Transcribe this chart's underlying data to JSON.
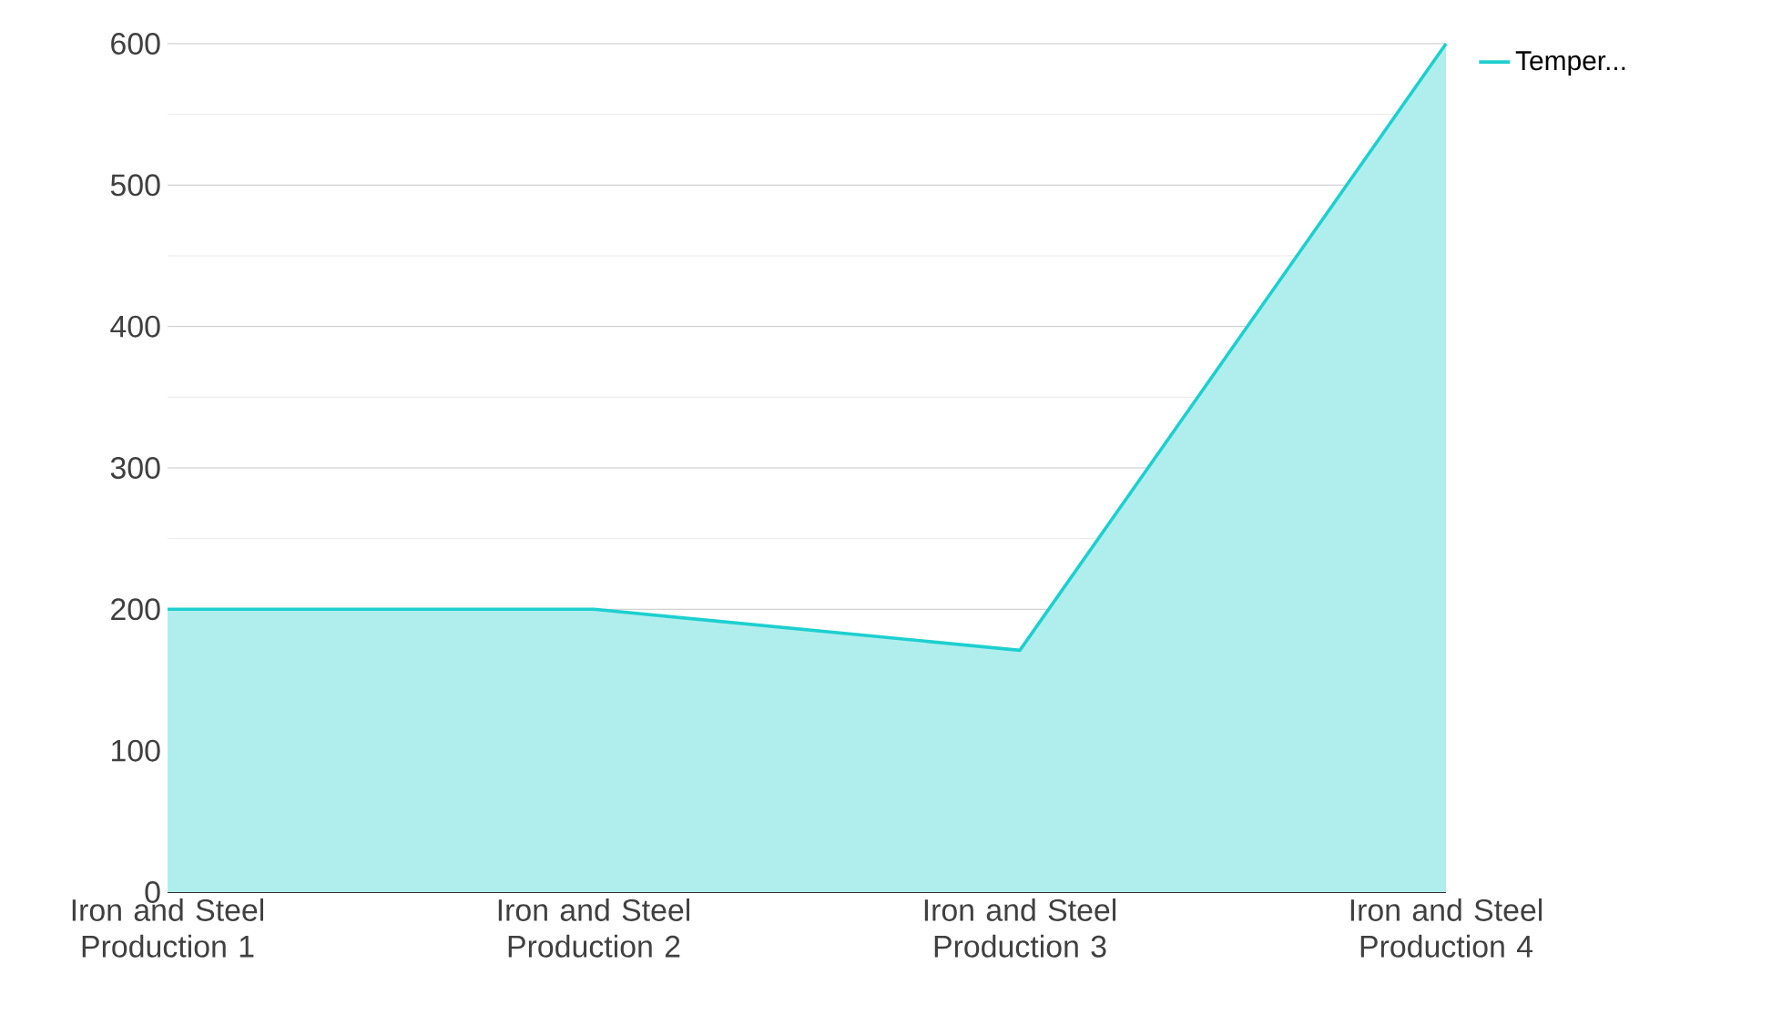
{
  "chart_data": {
    "type": "area",
    "categories": [
      "Iron and Steel Production 1",
      "Iron and Steel Production 2",
      "Iron and Steel Production 3",
      "Iron and Steel Production 4"
    ],
    "series": [
      {
        "name": "Temper...",
        "color": "#1ecfcf",
        "values": [
          200,
          200,
          171,
          600
        ]
      }
    ],
    "ylim": [
      0,
      600
    ],
    "yticks": [
      0,
      100,
      200,
      300,
      400,
      500,
      600
    ],
    "grid": "y",
    "legend": "top right"
  }
}
